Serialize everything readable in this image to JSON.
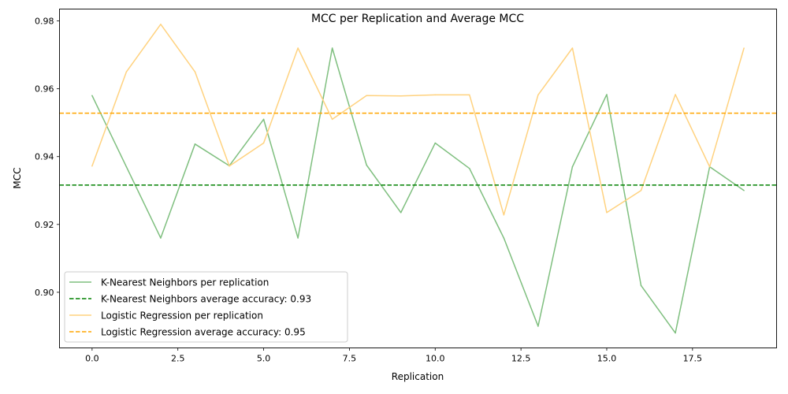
{
  "chart_data": {
    "type": "line",
    "title": "MCC per Replication and Average MCC",
    "xlabel": "Replication",
    "ylabel": "MCC",
    "xlim": [
      -0.95,
      19.95
    ],
    "ylim": [
      0.8836,
      0.9835
    ],
    "xticks": [
      0.0,
      2.5,
      5.0,
      7.5,
      10.0,
      12.5,
      15.0,
      17.5
    ],
    "xtick_labels": [
      "0.0",
      "2.5",
      "5.0",
      "7.5",
      "10.0",
      "12.5",
      "15.0",
      "17.5"
    ],
    "yticks": [
      0.9,
      0.92,
      0.94,
      0.96,
      0.98
    ],
    "ytick_labels": [
      "0.90",
      "0.92",
      "0.94",
      "0.96",
      "0.98"
    ],
    "grid": false,
    "legend_position": "lower-left",
    "x": [
      0,
      1,
      2,
      3,
      4,
      5,
      6,
      7,
      8,
      9,
      10,
      11,
      12,
      13,
      14,
      15,
      16,
      17,
      18,
      19
    ],
    "series": [
      {
        "name": "K-Nearest Neighbors per replication",
        "color": "#7fbf7f",
        "style": "solid",
        "values": [
          0.958,
          0.937,
          0.916,
          0.9437,
          0.9373,
          0.951,
          0.916,
          0.972,
          0.9375,
          0.9235,
          0.944,
          0.9365,
          0.916,
          0.89,
          0.937,
          0.9583,
          0.902,
          0.888,
          0.937,
          0.93
        ]
      },
      {
        "name": "Logistic Regression per replication",
        "color": "#ffd27f",
        "style": "solid",
        "values": [
          0.9372,
          0.965,
          0.979,
          0.965,
          0.9372,
          0.944,
          0.972,
          0.951,
          0.958,
          0.9579,
          0.9582,
          0.9582,
          0.9228,
          0.9582,
          0.972,
          0.9235,
          0.93,
          0.9583,
          0.937,
          0.972
        ]
      }
    ],
    "reference_lines": [
      {
        "name": "K-Nearest Neighbors average accuracy: 0.93",
        "value": 0.9316,
        "color": "#008000",
        "style": "dashed"
      },
      {
        "name": "Logistic Regression average accuracy: 0.95",
        "value": 0.9528,
        "color": "#ffa500",
        "style": "dashed"
      }
    ],
    "legend": [
      "K-Nearest Neighbors per replication",
      "K-Nearest Neighbors average accuracy: 0.93",
      "Logistic Regression per replication",
      "Logistic Regression average accuracy: 0.95"
    ]
  }
}
